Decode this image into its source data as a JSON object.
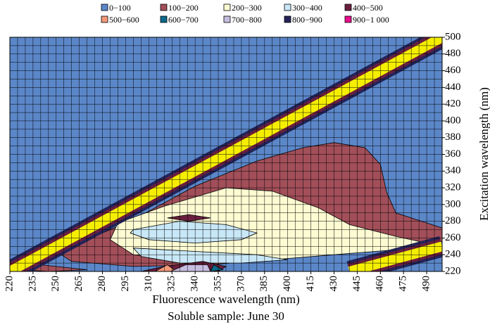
{
  "chart_data": {
    "type": "heatmap",
    "title": "",
    "xlabel": "Fluorescence wavelength (nm)",
    "ylabel": "Excitation wavelength (nm)",
    "caption": "Soluble sample: June 30",
    "x_ticks": [
      220,
      235,
      250,
      265,
      280,
      295,
      310,
      325,
      340,
      355,
      370,
      385,
      400,
      415,
      430,
      445,
      460,
      475,
      490
    ],
    "y_ticks": [
      220,
      240,
      260,
      280,
      300,
      320,
      340,
      360,
      380,
      400,
      420,
      440,
      460,
      480,
      500
    ],
    "xlim": [
      220,
      500
    ],
    "ylim": [
      220,
      500
    ],
    "grid": true,
    "legend_position": "top",
    "legend": [
      {
        "label": "0−100",
        "color": "#5b87c9"
      },
      {
        "label": "100−200",
        "color": "#a24f5a"
      },
      {
        "label": "200−300",
        "color": "#fdfbd2"
      },
      {
        "label": "300−400",
        "color": "#c8e7f7"
      },
      {
        "label": "400−500",
        "color": "#6b1f3e"
      },
      {
        "label": "500−600",
        "color": "#f3997a"
      },
      {
        "label": "600−700",
        "color": "#0b6a8a"
      },
      {
        "label": "700−800",
        "color": "#c7bde0"
      },
      {
        "label": "800−900",
        "color": "#242459"
      },
      {
        "label": "900−1 000",
        "color": "#e80e8b"
      }
    ],
    "scatter_band_color": "#f5ee00",
    "scatter_band_points": [
      [
        220,
        220
      ],
      [
        500,
        500
      ]
    ],
    "second_order_band_points": [
      [
        440,
        220
      ],
      [
        500,
        250
      ]
    ],
    "regions": [
      {
        "range": "100−200",
        "outline": [
          [
            270,
            258
          ],
          [
            300,
            282
          ],
          [
            340,
            322
          ],
          [
            380,
            352
          ],
          [
            410,
            368
          ],
          [
            430,
            374
          ],
          [
            450,
            368
          ],
          [
            460,
            348
          ],
          [
            464,
            315
          ],
          [
            470,
            290
          ],
          [
            490,
            278
          ],
          [
            500,
            272
          ],
          [
            500,
            256
          ],
          [
            480,
            252
          ],
          [
            440,
            244
          ],
          [
            400,
            236
          ],
          [
            350,
            228
          ],
          [
            300,
            226
          ],
          [
            260,
            232
          ],
          [
            250,
            244
          ],
          [
            260,
            252
          ]
        ]
      },
      {
        "range": "200−300",
        "outline": [
          [
            290,
            278
          ],
          [
            320,
            298
          ],
          [
            360,
            320
          ],
          [
            390,
            316
          ],
          [
            420,
            296
          ],
          [
            440,
            276
          ],
          [
            470,
            262
          ],
          [
            490,
            254
          ],
          [
            470,
            246
          ],
          [
            430,
            240
          ],
          [
            390,
            234
          ],
          [
            340,
            232
          ],
          [
            300,
            240
          ],
          [
            285,
            258
          ]
        ]
      },
      {
        "range": "300−400",
        "outline": [
          [
            300,
            270
          ],
          [
            330,
            280
          ],
          [
            360,
            276
          ],
          [
            380,
            266
          ],
          [
            370,
            258
          ],
          [
            340,
            254
          ],
          [
            310,
            258
          ],
          [
            298,
            266
          ]
        ]
      },
      {
        "range": "400−500",
        "outline": [
          [
            322,
            284
          ],
          [
            336,
            288
          ],
          [
            350,
            284
          ],
          [
            336,
            280
          ]
        ]
      },
      {
        "range": "300−400",
        "outline": [
          [
            300,
            248
          ],
          [
            340,
            244
          ],
          [
            380,
            240
          ],
          [
            400,
            234
          ],
          [
            370,
            230
          ],
          [
            330,
            230
          ],
          [
            305,
            238
          ]
        ]
      },
      {
        "range": "100−200",
        "outline": [
          [
            230,
            230
          ],
          [
            250,
            226
          ],
          [
            270,
            222
          ],
          [
            245,
            220
          ],
          [
            228,
            222
          ]
        ]
      },
      {
        "range": "400−500",
        "outline": [
          [
            305,
            220
          ],
          [
            320,
            226
          ],
          [
            345,
            232
          ],
          [
            360,
            226
          ],
          [
            355,
            220
          ]
        ]
      },
      {
        "range": "500−600",
        "outline": [
          [
            314,
            220
          ],
          [
            322,
            228
          ],
          [
            328,
            220
          ]
        ]
      },
      {
        "range": "700−800",
        "outline": [
          [
            324,
            220
          ],
          [
            334,
            228
          ],
          [
            348,
            228
          ],
          [
            350,
            220
          ]
        ]
      },
      {
        "range": "600−700",
        "outline": [
          [
            350,
            220
          ],
          [
            352,
            228
          ],
          [
            358,
            222
          ]
        ]
      }
    ]
  }
}
